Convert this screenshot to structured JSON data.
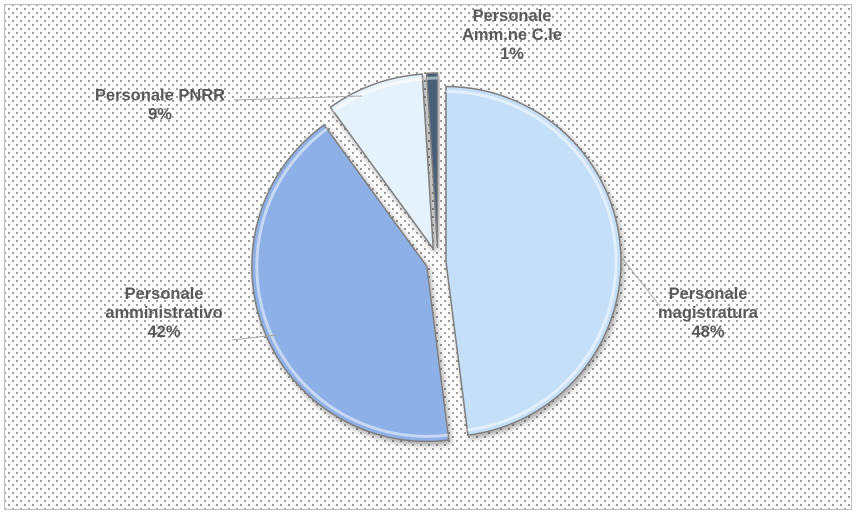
{
  "chart_data": {
    "type": "pie",
    "exploded": true,
    "slices": [
      {
        "label_lines": [
          "Personale",
          "magistratura",
          "48%"
        ],
        "value": 48,
        "color": "#c5dff8"
      },
      {
        "label_lines": [
          "Personale",
          "amministrativo",
          "42%"
        ],
        "value": 42,
        "color": "#8fb0e6"
      },
      {
        "label_lines": [
          "Personale PNRR",
          "9%"
        ],
        "value": 9,
        "color": "#e6f2fb"
      },
      {
        "label_lines": [
          "Personale",
          "Amm.ne C.le",
          "1%"
        ],
        "value": 1,
        "color": "#4a5f78"
      }
    ]
  }
}
